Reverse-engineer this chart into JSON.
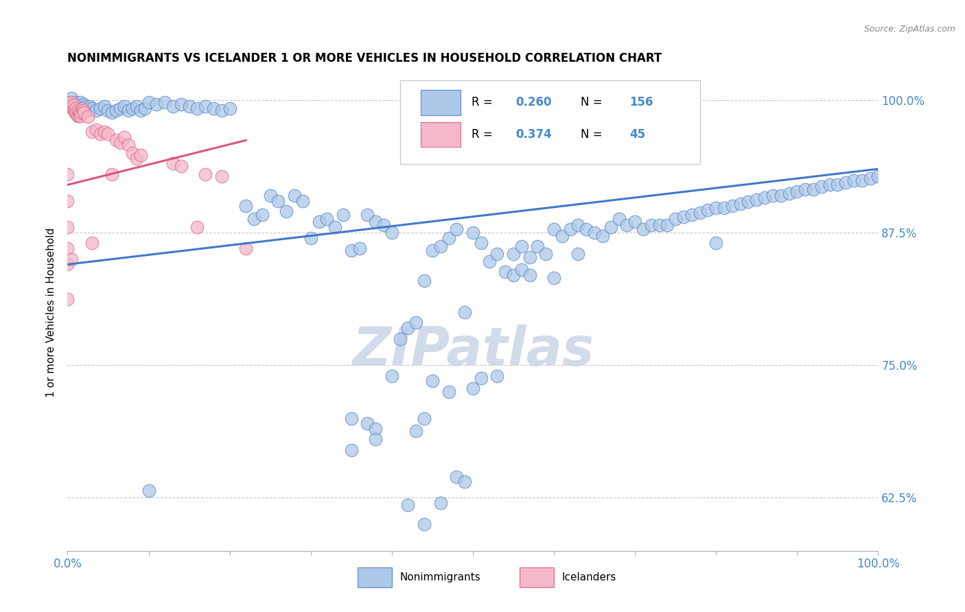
{
  "title": "NONIMMIGRANTS VS ICELANDER 1 OR MORE VEHICLES IN HOUSEHOLD CORRELATION CHART",
  "source": "Source: ZipAtlas.com",
  "ylabel": "1 or more Vehicles in Household",
  "yticks": [
    0.625,
    0.75,
    0.875,
    1.0
  ],
  "ytick_labels": [
    "62.5%",
    "75.0%",
    "87.5%",
    "100.0%"
  ],
  "xlim": [
    0.0,
    1.0
  ],
  "ylim": [
    0.575,
    1.025
  ],
  "legend_blue_R": "0.260",
  "legend_blue_N": "156",
  "legend_pink_R": "0.374",
  "legend_pink_N": "45",
  "blue_fill": "#adc8e8",
  "blue_edge": "#5588cc",
  "pink_fill": "#f5b8c8",
  "pink_edge": "#dd6688",
  "blue_line_color": "#4477cc",
  "pink_line_color": "#dd5577",
  "watermark_color": "#cdd8e8",
  "blue_line": [
    [
      0.0,
      0.845
    ],
    [
      1.0,
      0.935
    ]
  ],
  "pink_line": [
    [
      0.0,
      0.92
    ],
    [
      0.22,
      0.962
    ]
  ],
  "blue_scatter": [
    [
      0.005,
      1.002
    ],
    [
      0.01,
      0.998
    ],
    [
      0.012,
      0.995
    ],
    [
      0.014,
      0.99
    ],
    [
      0.016,
      0.998
    ],
    [
      0.018,
      0.992
    ],
    [
      0.02,
      0.996
    ],
    [
      0.022,
      0.994
    ],
    [
      0.024,
      0.992
    ],
    [
      0.026,
      0.99
    ],
    [
      0.028,
      0.994
    ],
    [
      0.03,
      0.992
    ],
    [
      0.035,
      0.99
    ],
    [
      0.04,
      0.992
    ],
    [
      0.045,
      0.994
    ],
    [
      0.05,
      0.99
    ],
    [
      0.055,
      0.988
    ],
    [
      0.06,
      0.99
    ],
    [
      0.065,
      0.992
    ],
    [
      0.07,
      0.994
    ],
    [
      0.075,
      0.99
    ],
    [
      0.08,
      0.992
    ],
    [
      0.085,
      0.994
    ],
    [
      0.09,
      0.99
    ],
    [
      0.095,
      0.992
    ],
    [
      0.1,
      0.998
    ],
    [
      0.11,
      0.996
    ],
    [
      0.12,
      0.998
    ],
    [
      0.13,
      0.994
    ],
    [
      0.14,
      0.996
    ],
    [
      0.15,
      0.994
    ],
    [
      0.16,
      0.992
    ],
    [
      0.17,
      0.994
    ],
    [
      0.18,
      0.992
    ],
    [
      0.19,
      0.99
    ],
    [
      0.2,
      0.992
    ],
    [
      0.22,
      0.9
    ],
    [
      0.23,
      0.888
    ],
    [
      0.24,
      0.892
    ],
    [
      0.25,
      0.91
    ],
    [
      0.26,
      0.905
    ],
    [
      0.27,
      0.895
    ],
    [
      0.28,
      0.91
    ],
    [
      0.29,
      0.905
    ],
    [
      0.3,
      0.87
    ],
    [
      0.31,
      0.885
    ],
    [
      0.32,
      0.888
    ],
    [
      0.33,
      0.88
    ],
    [
      0.34,
      0.892
    ],
    [
      0.35,
      0.858
    ],
    [
      0.36,
      0.86
    ],
    [
      0.37,
      0.892
    ],
    [
      0.38,
      0.885
    ],
    [
      0.39,
      0.882
    ],
    [
      0.4,
      0.875
    ],
    [
      0.41,
      0.775
    ],
    [
      0.42,
      0.785
    ],
    [
      0.43,
      0.79
    ],
    [
      0.44,
      0.83
    ],
    [
      0.45,
      0.858
    ],
    [
      0.46,
      0.862
    ],
    [
      0.47,
      0.87
    ],
    [
      0.48,
      0.878
    ],
    [
      0.49,
      0.8
    ],
    [
      0.5,
      0.875
    ],
    [
      0.51,
      0.865
    ],
    [
      0.52,
      0.848
    ],
    [
      0.53,
      0.855
    ],
    [
      0.54,
      0.838
    ],
    [
      0.55,
      0.855
    ],
    [
      0.56,
      0.862
    ],
    [
      0.57,
      0.852
    ],
    [
      0.58,
      0.862
    ],
    [
      0.59,
      0.855
    ],
    [
      0.6,
      0.878
    ],
    [
      0.61,
      0.872
    ],
    [
      0.62,
      0.878
    ],
    [
      0.63,
      0.882
    ],
    [
      0.64,
      0.878
    ],
    [
      0.65,
      0.875
    ],
    [
      0.66,
      0.872
    ],
    [
      0.67,
      0.88
    ],
    [
      0.68,
      0.888
    ],
    [
      0.69,
      0.882
    ],
    [
      0.7,
      0.885
    ],
    [
      0.71,
      0.878
    ],
    [
      0.72,
      0.882
    ],
    [
      0.73,
      0.882
    ],
    [
      0.74,
      0.882
    ],
    [
      0.75,
      0.888
    ],
    [
      0.76,
      0.89
    ],
    [
      0.77,
      0.892
    ],
    [
      0.78,
      0.894
    ],
    [
      0.79,
      0.896
    ],
    [
      0.8,
      0.898
    ],
    [
      0.81,
      0.898
    ],
    [
      0.82,
      0.9
    ],
    [
      0.83,
      0.902
    ],
    [
      0.84,
      0.904
    ],
    [
      0.85,
      0.906
    ],
    [
      0.86,
      0.908
    ],
    [
      0.87,
      0.91
    ],
    [
      0.88,
      0.91
    ],
    [
      0.89,
      0.912
    ],
    [
      0.9,
      0.914
    ],
    [
      0.91,
      0.916
    ],
    [
      0.92,
      0.916
    ],
    [
      0.93,
      0.918
    ],
    [
      0.94,
      0.92
    ],
    [
      0.95,
      0.92
    ],
    [
      0.96,
      0.922
    ],
    [
      0.97,
      0.924
    ],
    [
      0.98,
      0.924
    ],
    [
      0.99,
      0.926
    ],
    [
      1.0,
      0.928
    ],
    [
      0.35,
      0.7
    ],
    [
      0.37,
      0.695
    ],
    [
      0.38,
      0.69
    ],
    [
      0.4,
      0.74
    ],
    [
      0.43,
      0.688
    ],
    [
      0.44,
      0.7
    ],
    [
      0.45,
      0.735
    ],
    [
      0.47,
      0.725
    ],
    [
      0.48,
      0.645
    ],
    [
      0.49,
      0.64
    ],
    [
      0.5,
      0.728
    ],
    [
      0.51,
      0.738
    ],
    [
      0.53,
      0.74
    ],
    [
      0.55,
      0.835
    ],
    [
      0.56,
      0.84
    ],
    [
      0.57,
      0.835
    ],
    [
      0.6,
      0.832
    ],
    [
      0.63,
      0.855
    ],
    [
      0.1,
      0.632
    ],
    [
      0.35,
      0.67
    ],
    [
      0.38,
      0.68
    ],
    [
      0.42,
      0.618
    ],
    [
      0.44,
      0.6
    ],
    [
      0.46,
      0.62
    ],
    [
      0.8,
      0.865
    ]
  ],
  "pink_scatter": [
    [
      0.0,
      0.998
    ],
    [
      0.003,
      0.994
    ],
    [
      0.005,
      0.998
    ],
    [
      0.006,
      0.992
    ],
    [
      0.007,
      0.995
    ],
    [
      0.008,
      0.99
    ],
    [
      0.009,
      0.988
    ],
    [
      0.01,
      0.992
    ],
    [
      0.011,
      0.988
    ],
    [
      0.012,
      0.985
    ],
    [
      0.013,
      0.99
    ],
    [
      0.014,
      0.985
    ],
    [
      0.015,
      0.988
    ],
    [
      0.016,
      0.985
    ],
    [
      0.017,
      0.988
    ],
    [
      0.018,
      0.992
    ],
    [
      0.019,
      0.99
    ],
    [
      0.02,
      0.988
    ],
    [
      0.025,
      0.984
    ],
    [
      0.03,
      0.97
    ],
    [
      0.035,
      0.972
    ],
    [
      0.04,
      0.968
    ],
    [
      0.045,
      0.97
    ],
    [
      0.05,
      0.968
    ],
    [
      0.06,
      0.962
    ],
    [
      0.065,
      0.96
    ],
    [
      0.07,
      0.965
    ],
    [
      0.075,
      0.958
    ],
    [
      0.08,
      0.95
    ],
    [
      0.085,
      0.945
    ],
    [
      0.09,
      0.948
    ],
    [
      0.13,
      0.94
    ],
    [
      0.14,
      0.938
    ],
    [
      0.17,
      0.93
    ],
    [
      0.19,
      0.928
    ],
    [
      0.0,
      0.93
    ],
    [
      0.0,
      0.905
    ],
    [
      0.0,
      0.88
    ],
    [
      0.0,
      0.86
    ],
    [
      0.0,
      0.845
    ],
    [
      0.005,
      0.85
    ],
    [
      0.0,
      0.812
    ],
    [
      0.03,
      0.865
    ],
    [
      0.055,
      0.93
    ],
    [
      0.16,
      0.88
    ],
    [
      0.22,
      0.86
    ]
  ]
}
